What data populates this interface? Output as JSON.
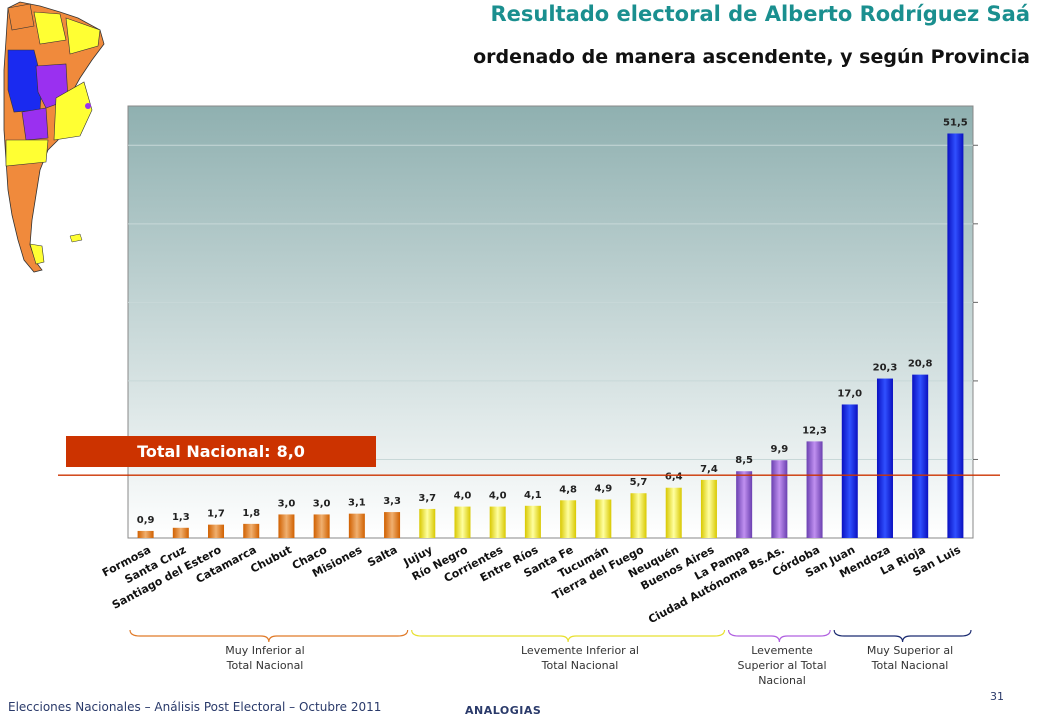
{
  "header": {
    "title": "Resultado electoral de Alberto Rodríguez Saá",
    "subtitle": "ordenado de manera ascendente, y según Provincia"
  },
  "total_box": {
    "label": "Total Nacional:",
    "value": "8,0"
  },
  "groups": [
    {
      "line1": "Muy Inferior al",
      "line2": "Total Nacional",
      "line3": "",
      "color": "#e07a28"
    },
    {
      "line1": "Levemente Inferior al",
      "line2": "Total Nacional",
      "line3": "",
      "color": "#e8e030"
    },
    {
      "line1": "Levemente",
      "line2": "Superior al Total",
      "line3": "Nacional",
      "color": "#b060e0"
    },
    {
      "line1": "Muy Superior al",
      "line2": "Total Nacional",
      "line3": "",
      "color": "#1a2a70"
    }
  ],
  "footer": {
    "left": "Elecciones Nacionales – Análisis Post Electoral – Octubre 2011",
    "center": "ANALOGIAS",
    "page": "31"
  },
  "chart_data": {
    "type": "bar",
    "categories": [
      "Formosa",
      "Santa Cruz",
      "Santiago del Estero",
      "Catamarca",
      "Chubut",
      "Chaco",
      "Misiones",
      "Salta",
      "Jujuy",
      "Río Negro",
      "Corrientes",
      "Entre Ríos",
      "Santa Fe",
      "Tucumán",
      "Tierra del Fuego",
      "Neuquén",
      "Buenos Aires",
      "La Pampa",
      "Ciudad Autónoma Bs.As.",
      "Córdoba",
      "San Juan",
      "Mendoza",
      "La Rioja",
      "San Luis"
    ],
    "values": [
      0.9,
      1.3,
      1.7,
      1.8,
      3.0,
      3.0,
      3.1,
      3.3,
      3.7,
      4.0,
      4.0,
      4.1,
      4.8,
      4.9,
      5.7,
      6.4,
      7.4,
      8.5,
      9.9,
      12.3,
      17.0,
      20.3,
      20.8,
      51.5
    ],
    "value_labels": [
      "0,9",
      "1,3",
      "1,7",
      "1,8",
      "3,0",
      "3,0",
      "3,1",
      "3,3",
      "3,7",
      "4,0",
      "4,0",
      "4,1",
      "4,8",
      "4,9",
      "5,7",
      "6,4",
      "7,4",
      "8,5",
      "9,9",
      "12,3",
      "17,0",
      "20,3",
      "20,8",
      "51,5"
    ],
    "bar_groups": [
      "orange",
      "orange",
      "orange",
      "orange",
      "orange",
      "orange",
      "orange",
      "orange",
      "yellow",
      "yellow",
      "yellow",
      "yellow",
      "yellow",
      "yellow",
      "yellow",
      "yellow",
      "yellow",
      "purple",
      "purple",
      "purple",
      "blue",
      "blue",
      "blue",
      "blue"
    ],
    "reference_line": 8.0,
    "ylim": [
      0,
      55
    ],
    "grid": true,
    "colors": {
      "orange": "#e87a10",
      "yellow": "#e8e000",
      "purple": "#9a60d8",
      "blue": "#1a20f0",
      "plot_bg_top": "#8fb0b0",
      "plot_bg_bottom": "#ffffff",
      "reference": "#cc3300"
    }
  }
}
